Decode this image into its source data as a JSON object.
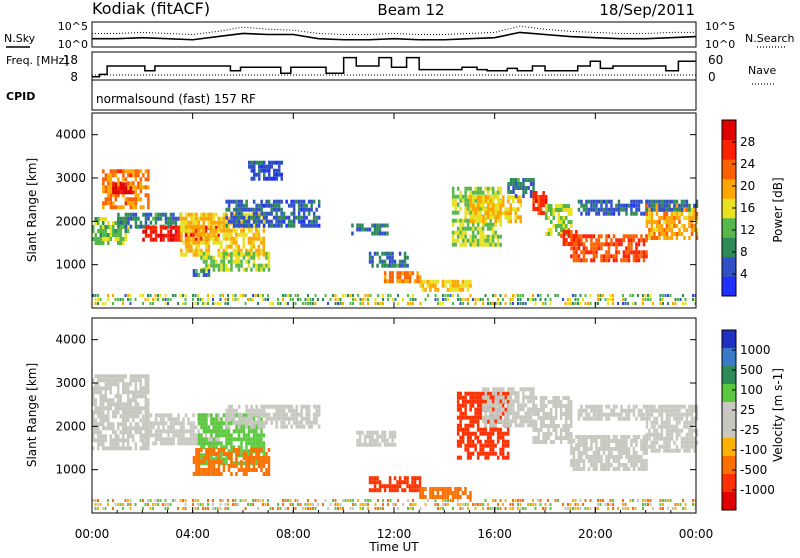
{
  "header": {
    "station": "Kodiak (fitACF)",
    "beam": "Beam 12",
    "date": "18/Sep/2011",
    "cpid_label": "CPID",
    "cpid_text": "normalsound (fast) 157 RF"
  },
  "colors": {
    "power_scale": [
      "#2030ff",
      "#3050c8",
      "#2e8b57",
      "#56b84a",
      "#e8e020",
      "#ffa500",
      "#ff6000",
      "#ff2000",
      "#e00000"
    ],
    "velocity_scale": [
      "#2030c0",
      "#3a7ac8",
      "#2e8b57",
      "#5cc840",
      "#c8c8c0",
      "#c8c8c0",
      "#ffb000",
      "#ff7000",
      "#ff3000",
      "#e00000"
    ]
  },
  "chart_data": [
    {
      "type": "line",
      "title": "",
      "left_ylabel": "N.Sky",
      "right_ylabel": "N.Search",
      "yticks_left": [
        "10^5",
        "10^0"
      ],
      "yticks_right": [
        "10^5",
        "10^0"
      ],
      "x": [
        0,
        1,
        2,
        3,
        4,
        5,
        6,
        7,
        8,
        9,
        10,
        11,
        12,
        13,
        14,
        15,
        16,
        17,
        18,
        19,
        20,
        21,
        22,
        23,
        24
      ],
      "series": [
        {
          "name": "N.Sky",
          "style": "solid",
          "values": [
            0.3,
            0.3,
            0.35,
            0.3,
            0.25,
            0.4,
            0.55,
            0.5,
            0.5,
            0.3,
            0.25,
            0.25,
            0.3,
            0.25,
            0.25,
            0.3,
            0.35,
            0.6,
            0.5,
            0.4,
            0.35,
            0.3,
            0.3,
            0.35,
            0.4
          ]
        },
        {
          "name": "N.Search",
          "style": "dotted",
          "values": [
            0.55,
            0.55,
            0.6,
            0.55,
            0.5,
            0.65,
            0.85,
            0.75,
            0.7,
            0.55,
            0.5,
            0.5,
            0.55,
            0.5,
            0.5,
            0.55,
            0.6,
            0.9,
            0.75,
            0.65,
            0.6,
            0.55,
            0.55,
            0.6,
            0.6
          ]
        }
      ]
    },
    {
      "type": "line",
      "left_ylabel": "Freq. [MHz]",
      "right_ylabel": "Nave",
      "yticks_left": [
        "18",
        "8"
      ],
      "yticks_right": [
        "60",
        "0"
      ],
      "series": [
        {
          "name": "Freq.",
          "style": "solid",
          "times": [
            0,
            0.3,
            0.6,
            2.1,
            2.5,
            5.5,
            5.9,
            7.5,
            7.9,
            9.3,
            10.0,
            10.5,
            11.4,
            11.9,
            12.5,
            13.0,
            14.7,
            15.3,
            15.7,
            16.5,
            16.9,
            17.5,
            18.0,
            19.3,
            19.8,
            20.2,
            20.7,
            22.8,
            23.3,
            24
          ],
          "values": [
            8.5,
            9.5,
            13,
            11,
            13,
            11,
            12.5,
            10,
            12.5,
            10,
            16.5,
            13,
            16.5,
            12.5,
            16.5,
            11.5,
            12.5,
            11.5,
            11,
            12,
            11,
            13,
            11,
            13,
            15,
            12,
            13,
            11,
            15,
            15
          ]
        },
        {
          "name": "Nave",
          "style": "dotted",
          "times": [
            0,
            24
          ],
          "values": [
            10,
            10
          ]
        }
      ]
    },
    {
      "type": "heatmap",
      "title": "",
      "xlabel": "",
      "ylabel": "Slant Range [km]",
      "xlim": [
        0,
        24
      ],
      "ylim": [
        0,
        4500
      ],
      "yticks": [
        1000,
        2000,
        3000,
        4000
      ],
      "colorbar_label": "Power [dB]",
      "colorbar_ticks": [
        4,
        8,
        12,
        16,
        20,
        24,
        28
      ],
      "colorbar_range": [
        0,
        32
      ],
      "patches": [
        {
          "t0": 0.0,
          "t1": 1.4,
          "r0": 1500,
          "r1": 2100,
          "v": 13
        },
        {
          "t0": 0.4,
          "t1": 2.2,
          "r0": 2300,
          "r1": 3200,
          "v": 22
        },
        {
          "t0": 0.8,
          "t1": 1.6,
          "r0": 2700,
          "r1": 2900,
          "v": 30
        },
        {
          "t0": 1.0,
          "t1": 3.5,
          "r0": 1900,
          "r1": 2200,
          "v": 8
        },
        {
          "t0": 2.0,
          "t1": 5.0,
          "r0": 1600,
          "r1": 1900,
          "v": 28
        },
        {
          "t0": 3.5,
          "t1": 6.8,
          "r0": 1200,
          "r1": 2200,
          "v": 18
        },
        {
          "t0": 4.3,
          "t1": 7.0,
          "r0": 900,
          "r1": 1300,
          "v": 14
        },
        {
          "t0": 4.0,
          "t1": 4.6,
          "r0": 750,
          "r1": 900,
          "v": 8
        },
        {
          "t0": 5.3,
          "t1": 9.0,
          "r0": 1900,
          "r1": 2500,
          "v": 6
        },
        {
          "t0": 6.2,
          "t1": 7.5,
          "r0": 3000,
          "r1": 3400,
          "v": 5
        },
        {
          "t0": 10.3,
          "t1": 11.7,
          "r0": 1700,
          "r1": 1950,
          "v": 8
        },
        {
          "t0": 11.0,
          "t1": 12.5,
          "r0": 1000,
          "r1": 1300,
          "v": 8
        },
        {
          "t0": 11.6,
          "t1": 13.0,
          "r0": 600,
          "r1": 850,
          "v": 22
        },
        {
          "t0": 13.0,
          "t1": 15.0,
          "r0": 400,
          "r1": 650,
          "v": 18
        },
        {
          "t0": 14.3,
          "t1": 16.2,
          "r0": 1500,
          "r1": 2800,
          "v": 14
        },
        {
          "t0": 15.0,
          "t1": 17.0,
          "r0": 2000,
          "r1": 2600,
          "v": 18
        },
        {
          "t0": 16.5,
          "t1": 17.5,
          "r0": 2600,
          "r1": 3000,
          "v": 8
        },
        {
          "t0": 17.5,
          "t1": 18.0,
          "r0": 2200,
          "r1": 2700,
          "v": 26
        },
        {
          "t0": 18.0,
          "t1": 19.0,
          "r0": 1700,
          "r1": 2400,
          "v": 14
        },
        {
          "t0": 18.6,
          "t1": 19.3,
          "r0": 1500,
          "r1": 1800,
          "v": 24
        },
        {
          "t0": 19.0,
          "t1": 22.0,
          "r0": 1100,
          "r1": 1700,
          "v": 25
        },
        {
          "t0": 19.3,
          "t1": 22.0,
          "r0": 2200,
          "r1": 2500,
          "v": 6
        },
        {
          "t0": 22.0,
          "t1": 24.0,
          "r0": 1600,
          "r1": 2400,
          "v": 20
        },
        {
          "t0": 22.0,
          "t1": 24.0,
          "r0": 2300,
          "r1": 2500,
          "v": 7
        }
      ]
    },
    {
      "type": "heatmap",
      "title": "",
      "xlabel": "Time UT",
      "ylabel": "Slant Range [km]",
      "xlim": [
        0,
        24
      ],
      "ylim": [
        0,
        4500
      ],
      "yticks": [
        1000,
        2000,
        3000,
        4000
      ],
      "xticks": [
        "00:00",
        "04:00",
        "08:00",
        "12:00",
        "16:00",
        "20:00",
        "00:00"
      ],
      "colorbar_label": "Velocity [m s-1]",
      "colorbar_ticks": [
        "1000",
        "500",
        "100",
        "25",
        "-25",
        "-100",
        "-500",
        "-1000"
      ],
      "patches": [
        {
          "t0": 0.0,
          "t1": 2.2,
          "r0": 1500,
          "r1": 3200,
          "v": -10
        },
        {
          "t0": 2.0,
          "t1": 5.0,
          "r0": 1600,
          "r1": 2300,
          "v": 10
        },
        {
          "t0": 4.2,
          "t1": 6.8,
          "r0": 1100,
          "r1": 2300,
          "v": 90
        },
        {
          "t0": 4.0,
          "t1": 7.0,
          "r0": 900,
          "r1": 1500,
          "v": -150
        },
        {
          "t0": 5.3,
          "t1": 9.0,
          "r0": 2000,
          "r1": 2500,
          "v": 5
        },
        {
          "t0": 10.5,
          "t1": 12.0,
          "r0": 1600,
          "r1": 1900,
          "v": 10
        },
        {
          "t0": 11.0,
          "t1": 13.0,
          "r0": 500,
          "r1": 850,
          "v": -300
        },
        {
          "t0": 13.0,
          "t1": 15.0,
          "r0": 380,
          "r1": 600,
          "v": -200
        },
        {
          "t0": 14.5,
          "t1": 16.5,
          "r0": 1300,
          "r1": 2800,
          "v": -400
        },
        {
          "t0": 15.5,
          "t1": 17.5,
          "r0": 2000,
          "r1": 2900,
          "v": 10
        },
        {
          "t0": 17.5,
          "t1": 19.0,
          "r0": 1600,
          "r1": 2700,
          "v": -20
        },
        {
          "t0": 19.0,
          "t1": 22.0,
          "r0": 1000,
          "r1": 1800,
          "v": 0
        },
        {
          "t0": 19.3,
          "t1": 22.0,
          "r0": 2200,
          "r1": 2500,
          "v": 5
        },
        {
          "t0": 22.0,
          "t1": 24.0,
          "r0": 1400,
          "r1": 2500,
          "v": -10
        }
      ]
    }
  ]
}
